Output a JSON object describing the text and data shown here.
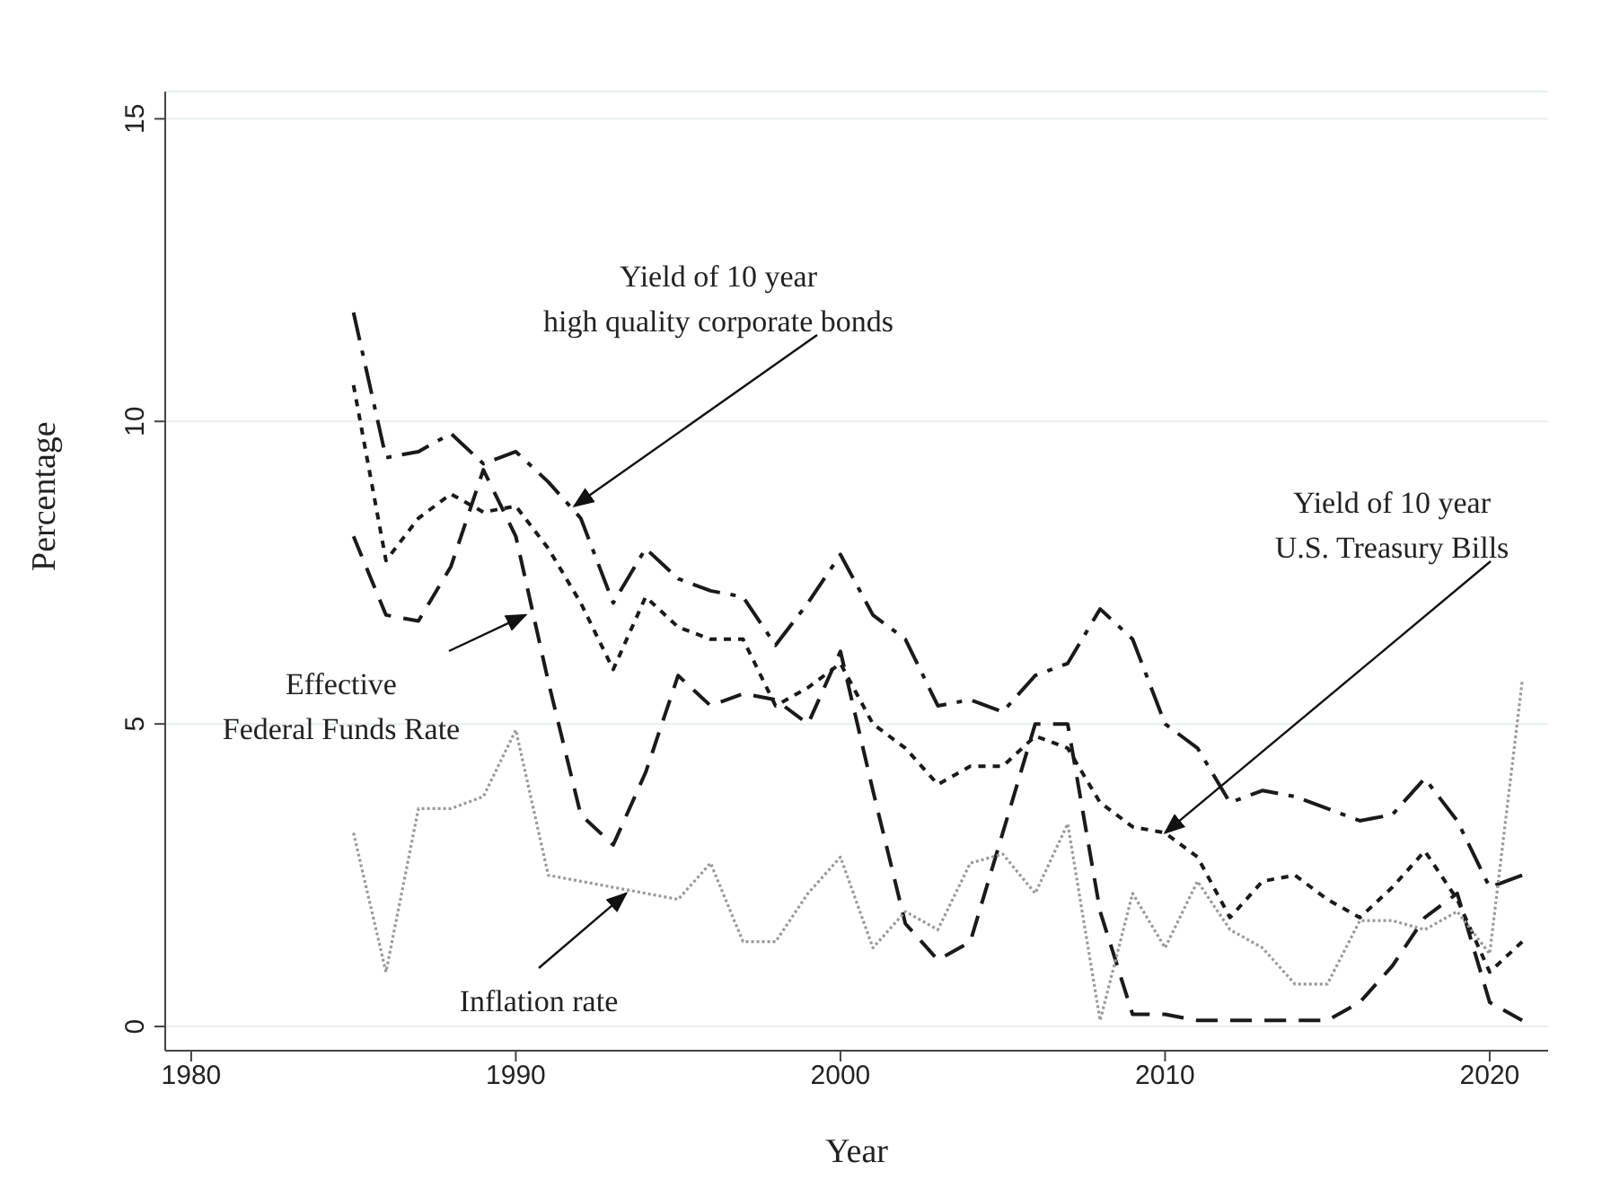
{
  "chart_data": {
    "type": "line",
    "xlabel": "Year",
    "ylabel": "Percentage",
    "x": [
      1985,
      1986,
      1987,
      1988,
      1989,
      1990,
      1991,
      1992,
      1993,
      1994,
      1995,
      1996,
      1997,
      1998,
      1999,
      2000,
      2001,
      2002,
      2003,
      2004,
      2005,
      2006,
      2007,
      2008,
      2009,
      2010,
      2011,
      2012,
      2013,
      2014,
      2015,
      2016,
      2017,
      2018,
      2019,
      2020,
      2021
    ],
    "series": [
      {
        "color": "#1a1a1a",
        "line_style": "dashed",
        "values": [
          11.8,
          9.4,
          9.5,
          9.8,
          9.3,
          9.5,
          9.0,
          8.4,
          7.0,
          7.9,
          7.4,
          7.2,
          7.1,
          6.3,
          7.0,
          7.8,
          6.8,
          6.4,
          5.3,
          5.4,
          5.2,
          5.8,
          6.0,
          6.9,
          6.4,
          5.0,
          4.6,
          3.7,
          3.9,
          3.8,
          3.6,
          3.4,
          3.5,
          4.1,
          3.4,
          2.3,
          2.5
        ]
      },
      {
        "color": "#1a1a1a",
        "line_style": "dotted",
        "values": [
          10.6,
          7.7,
          8.4,
          8.8,
          8.5,
          8.6,
          7.9,
          7.0,
          5.9,
          7.1,
          6.6,
          6.4,
          6.4,
          5.3,
          5.6,
          6.0,
          5.0,
          4.6,
          4.0,
          4.3,
          4.3,
          4.8,
          4.6,
          3.7,
          3.3,
          3.2,
          2.8,
          1.8,
          2.4,
          2.5,
          2.1,
          1.8,
          2.3,
          2.9,
          2.1,
          0.9,
          1.4
        ]
      },
      {
        "color": "#1a1a1a",
        "line_style": "dashed",
        "values": [
          8.1,
          6.8,
          6.7,
          7.6,
          9.2,
          8.1,
          5.7,
          3.5,
          3.0,
          4.2,
          5.8,
          5.3,
          5.5,
          5.4,
          5.0,
          6.2,
          3.9,
          1.7,
          1.1,
          1.4,
          3.2,
          5.0,
          5.0,
          1.9,
          0.2,
          0.2,
          0.1,
          0.1,
          0.1,
          0.1,
          0.1,
          0.4,
          1.0,
          1.8,
          2.2,
          0.4,
          0.1
        ]
      },
      {
        "color": "#9a9a9a",
        "line_style": "dotted",
        "values": [
          3.2,
          0.9,
          3.6,
          3.6,
          3.8,
          4.9,
          2.5,
          2.4,
          2.3,
          2.2,
          2.1,
          2.7,
          1.4,
          1.4,
          2.2,
          2.8,
          1.3,
          1.9,
          1.6,
          2.7,
          2.85,
          2.2,
          3.35,
          0.1,
          2.2,
          1.3,
          2.4,
          1.6,
          1.3,
          0.7,
          0.7,
          1.75,
          1.75,
          1.6,
          1.9,
          1.2,
          5.7
        ]
      }
    ],
    "xlim": [
      1979.2,
      2021.8
    ],
    "xticks": [
      1980,
      1990,
      2000,
      2010,
      2020
    ],
    "ylim": [
      -0.4,
      15.45
    ],
    "yticks": [
      0,
      5,
      10,
      15
    ],
    "grid": "y",
    "legend": false,
    "annotations": [
      {
        "text": "Yield of 10 year\nhigh quality corporate bonds",
        "x": 1991.8,
        "y": 8.6
      },
      {
        "text": "Yield of 10 year\nU.S. Treasury Bills",
        "x": 2010,
        "y": 3.2
      },
      {
        "text": "Effective\nFederal Funds Rate",
        "x": 1990.3,
        "y": 6.8
      },
      {
        "text": "Inflation rate",
        "x": 1993.4,
        "y": 2.2
      }
    ]
  }
}
